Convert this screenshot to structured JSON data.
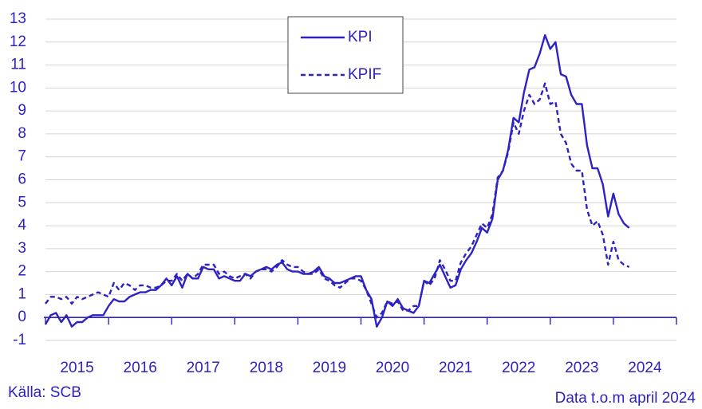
{
  "chart_data": {
    "type": "line",
    "x": [
      2015,
      2015.083,
      2015.167,
      2015.25,
      2015.333,
      2015.417,
      2015.5,
      2015.583,
      2015.667,
      2015.75,
      2015.833,
      2015.917,
      2016,
      2016.083,
      2016.167,
      2016.25,
      2016.333,
      2016.417,
      2016.5,
      2016.583,
      2016.667,
      2016.75,
      2016.833,
      2016.917,
      2017,
      2017.083,
      2017.167,
      2017.25,
      2017.333,
      2017.417,
      2017.5,
      2017.583,
      2017.667,
      2017.75,
      2017.833,
      2017.917,
      2018,
      2018.083,
      2018.167,
      2018.25,
      2018.333,
      2018.417,
      2018.5,
      2018.583,
      2018.667,
      2018.75,
      2018.833,
      2018.917,
      2019,
      2019.083,
      2019.167,
      2019.25,
      2019.333,
      2019.417,
      2019.5,
      2019.583,
      2019.667,
      2019.75,
      2019.833,
      2019.917,
      2020,
      2020.083,
      2020.167,
      2020.25,
      2020.333,
      2020.417,
      2020.5,
      2020.583,
      2020.667,
      2020.75,
      2020.833,
      2020.917,
      2021,
      2021.083,
      2021.167,
      2021.25,
      2021.333,
      2021.417,
      2021.5,
      2021.583,
      2021.667,
      2021.75,
      2021.833,
      2021.917,
      2022,
      2022.083,
      2022.167,
      2022.25,
      2022.333,
      2022.417,
      2022.5,
      2022.583,
      2022.667,
      2022.75,
      2022.833,
      2022.917,
      2023,
      2023.083,
      2023.167,
      2023.25,
      2023.333,
      2023.417,
      2023.5,
      2023.583,
      2023.667,
      2023.75,
      2023.833,
      2023.917,
      2024,
      2024.083,
      2024.167,
      2024.25
    ],
    "series": [
      {
        "name": "KPI",
        "color": "#2e22c2",
        "line_style": "solid",
        "values": [
          -0.3,
          0.1,
          0.2,
          -0.2,
          0.1,
          -0.4,
          -0.2,
          -0.2,
          0.0,
          0.1,
          0.1,
          0.1,
          0.5,
          0.8,
          0.7,
          0.7,
          0.9,
          1.0,
          1.1,
          1.1,
          1.2,
          1.2,
          1.4,
          1.7,
          1.4,
          1.8,
          1.3,
          1.9,
          1.7,
          1.7,
          2.2,
          2.1,
          2.1,
          1.7,
          1.8,
          1.7,
          1.6,
          1.6,
          1.9,
          1.8,
          2.0,
          2.1,
          2.2,
          2.1,
          2.3,
          2.4,
          2.1,
          2.0,
          2.0,
          1.9,
          1.9,
          2.0,
          2.2,
          1.8,
          1.7,
          1.5,
          1.5,
          1.6,
          1.7,
          1.8,
          1.8,
          1.2,
          0.8,
          -0.4,
          0.0,
          0.7,
          0.5,
          0.8,
          0.4,
          0.3,
          0.2,
          0.5,
          1.6,
          1.5,
          1.9,
          2.3,
          1.8,
          1.3,
          1.4,
          2.1,
          2.5,
          2.8,
          3.3,
          3.9,
          3.7,
          4.3,
          6.0,
          6.4,
          7.3,
          8.7,
          8.5,
          9.8,
          10.8,
          10.9,
          11.5,
          12.3,
          11.7,
          12.0,
          10.6,
          10.5,
          9.7,
          9.3,
          9.3,
          7.5,
          6.5,
          6.5,
          5.8,
          4.4,
          5.4,
          4.5,
          4.1,
          3.9
        ]
      },
      {
        "name": "KPIF",
        "color": "#2e22c2",
        "line_style": "dashed",
        "values": [
          0.6,
          0.9,
          0.9,
          0.8,
          0.9,
          0.6,
          0.9,
          0.8,
          0.9,
          1.0,
          1.1,
          1.0,
          0.9,
          1.5,
          1.2,
          1.5,
          1.4,
          1.2,
          1.4,
          1.4,
          1.3,
          1.3,
          1.4,
          1.6,
          1.6,
          1.9,
          1.6,
          1.9,
          1.7,
          1.9,
          2.3,
          2.3,
          2.3,
          1.9,
          2.0,
          1.8,
          1.7,
          1.8,
          1.9,
          1.7,
          2.0,
          2.1,
          2.1,
          2.0,
          2.2,
          2.5,
          2.3,
          2.2,
          2.2,
          2.0,
          1.9,
          1.9,
          2.1,
          1.7,
          1.6,
          1.4,
          1.3,
          1.5,
          1.7,
          1.7,
          1.6,
          1.2,
          0.6,
          0.0,
          0.2,
          0.7,
          0.6,
          0.7,
          0.3,
          0.3,
          0.5,
          0.5,
          1.6,
          1.4,
          1.7,
          2.5,
          2.1,
          1.6,
          1.6,
          2.4,
          2.8,
          3.1,
          3.6,
          4.1,
          3.9,
          4.5,
          6.1,
          6.4,
          7.2,
          8.5,
          8.0,
          9.0,
          9.7,
          9.3,
          9.5,
          10.2,
          9.3,
          9.4,
          8.0,
          7.6,
          6.7,
          6.4,
          6.4,
          4.7,
          4.0,
          4.2,
          3.6,
          2.3,
          3.3,
          2.5,
          2.3,
          2.2
        ]
      }
    ],
    "xlim": [
      2015,
      2025
    ],
    "xticks": [
      2015,
      2016,
      2017,
      2018,
      2019,
      2020,
      2021,
      2022,
      2023,
      2024,
      2025
    ],
    "year_labels": [
      "2015",
      "2016",
      "2017",
      "2018",
      "2019",
      "2020",
      "2021",
      "2022",
      "2023",
      "2024"
    ],
    "ylim": [
      -1,
      13
    ],
    "yticks": [
      -1,
      0,
      1,
      2,
      3,
      4,
      5,
      6,
      7,
      8,
      9,
      10,
      11,
      12,
      13
    ],
    "grid": true,
    "legend": "top",
    "source": "Källa: SCB",
    "note": "Data t.o.m april 2024"
  }
}
